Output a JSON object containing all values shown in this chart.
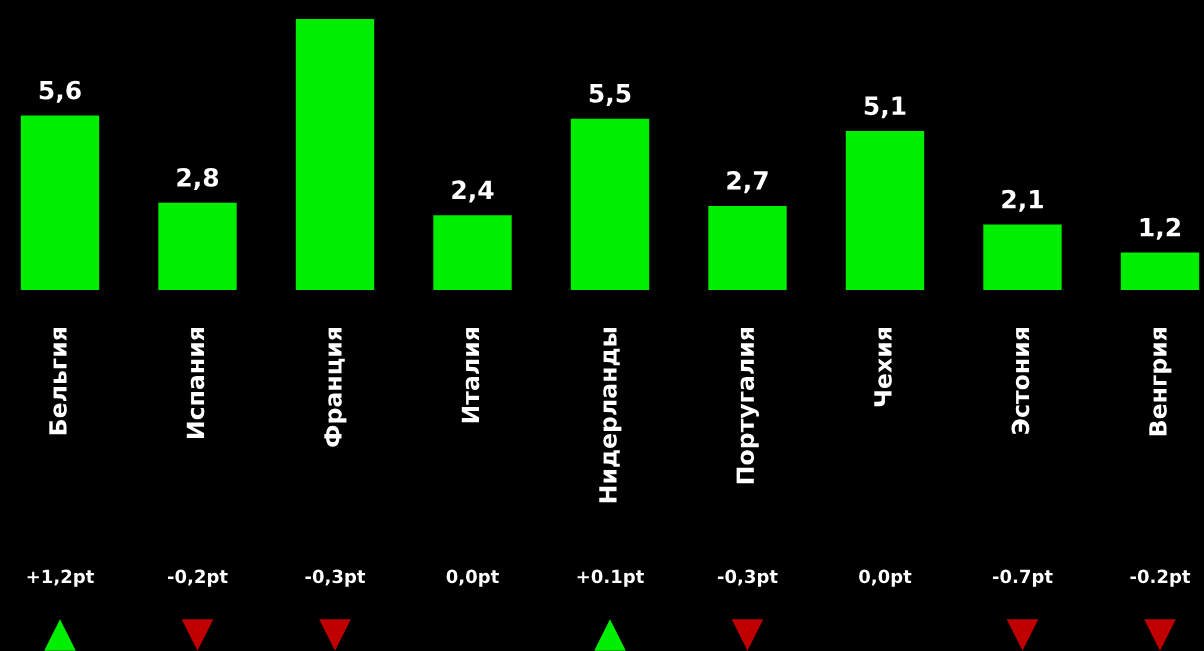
{
  "chart_data": {
    "type": "bar",
    "categories": [
      "Бельгия",
      "Испания",
      "Франция",
      "Италия",
      "Нидерланды",
      "Португалия",
      "Чехия",
      "Эстония",
      "Венгрия"
    ],
    "values": [
      5.6,
      2.8,
      8.7,
      2.4,
      5.5,
      2.7,
      5.1,
      2.1,
      1.2
    ],
    "value_labels": [
      "5,6",
      "2,8",
      null,
      "2,4",
      "5,5",
      "2,7",
      "5,1",
      "2,1",
      "1,2"
    ],
    "color": "#00ee00",
    "annotations": [
      "+1,2pt",
      "-0,2pt",
      "-0,3pt",
      "0,0pt",
      "+0.1pt",
      "-0,3pt",
      "0,0pt",
      "-0.7pt",
      "-0.2pt"
    ],
    "grid": false,
    "legend": false
  }
}
